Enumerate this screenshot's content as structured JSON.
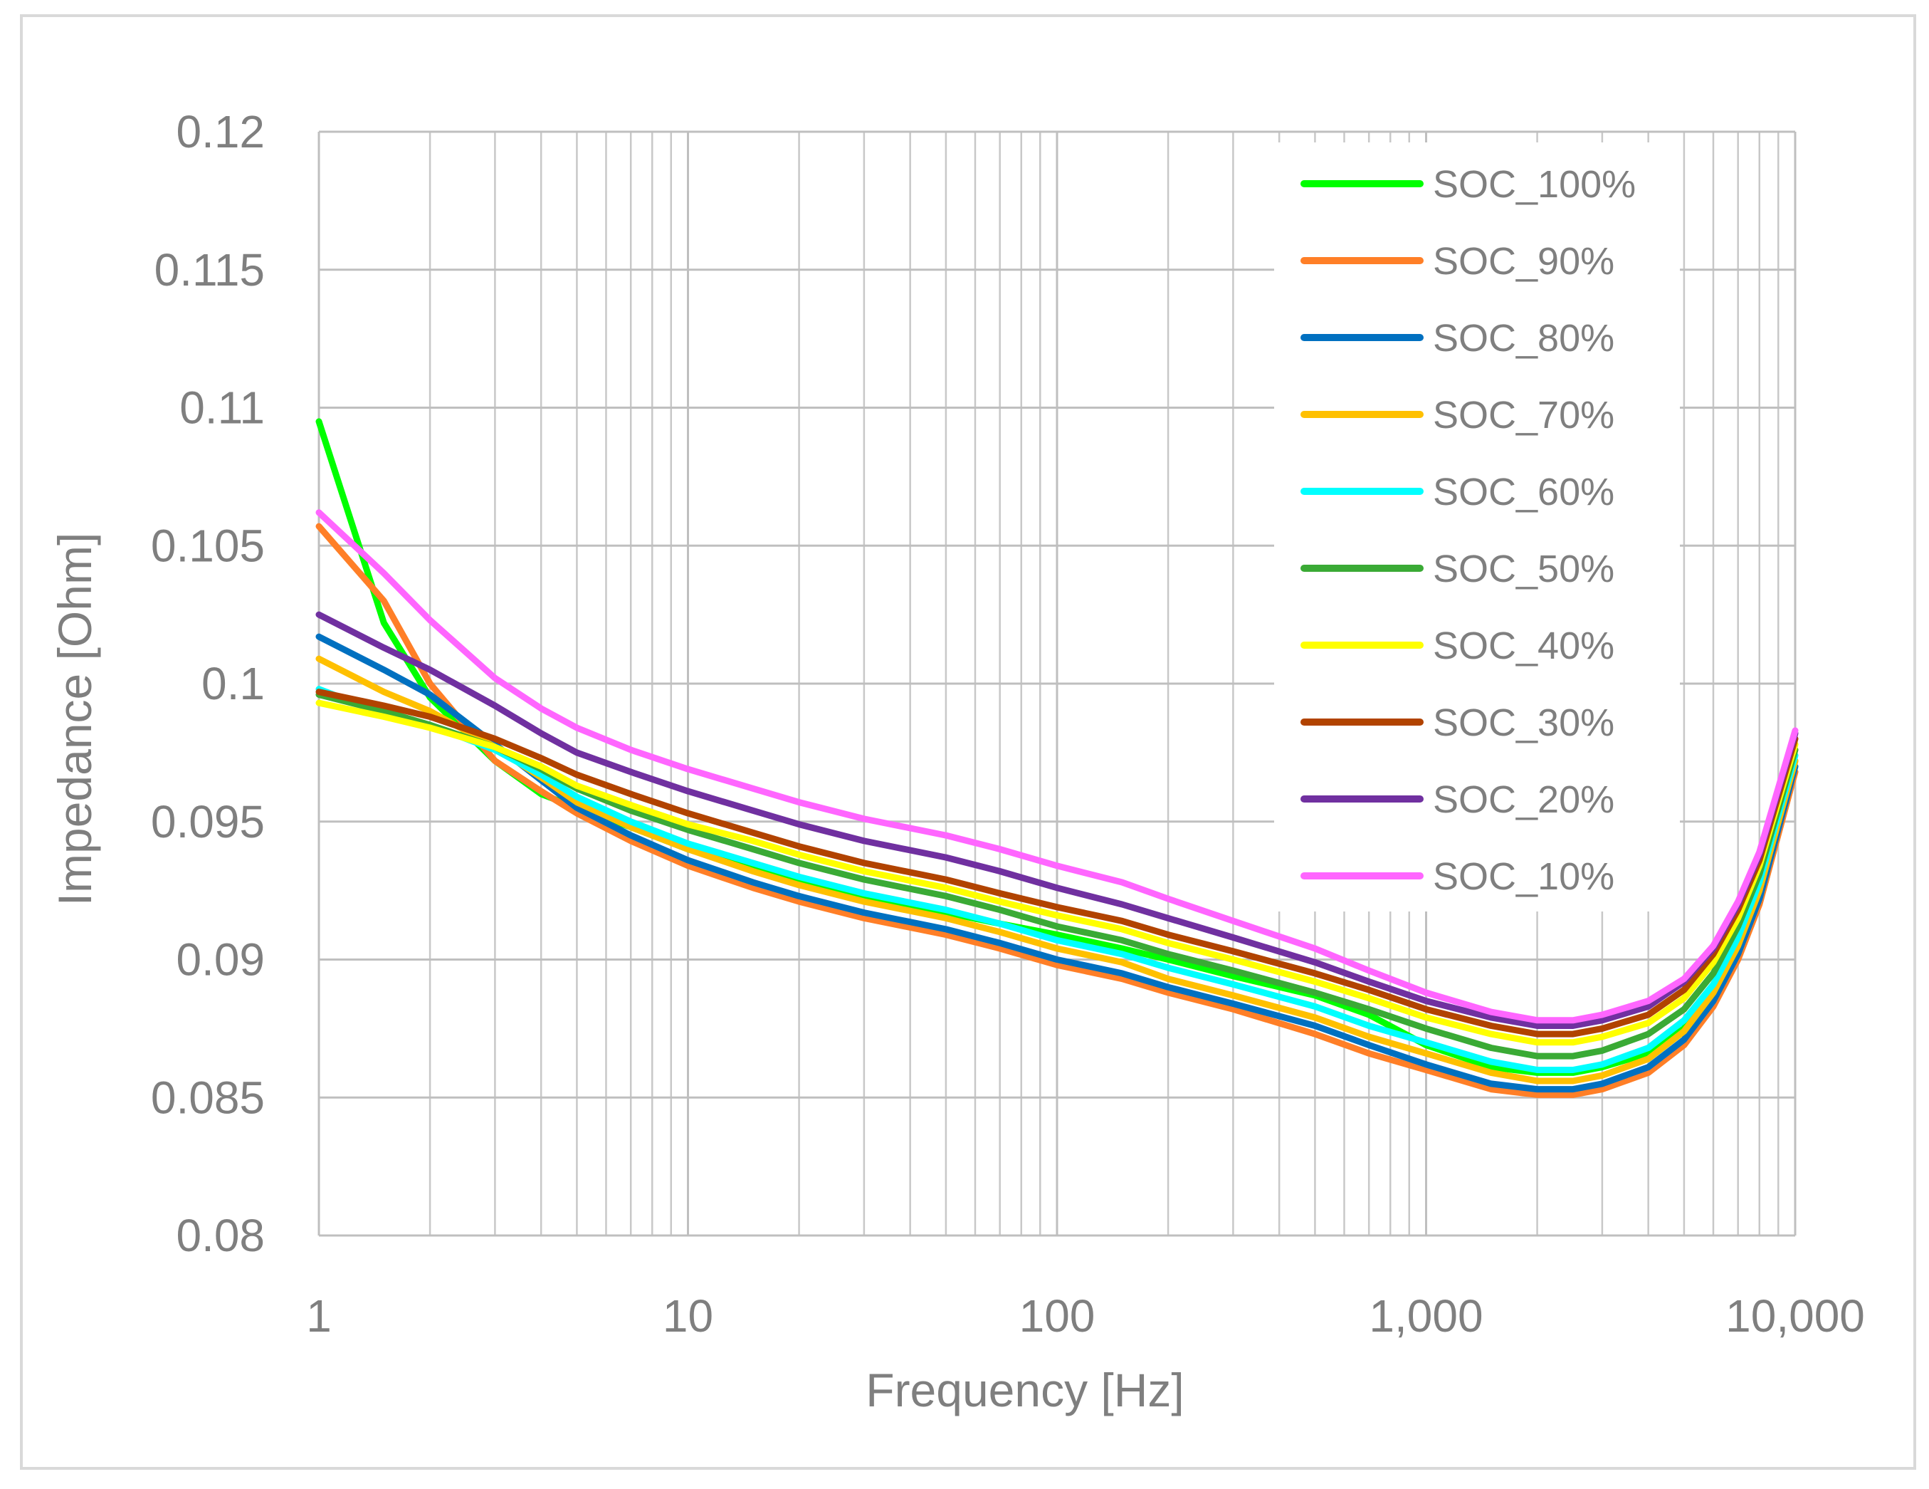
{
  "chart_data": {
    "type": "line",
    "title": "",
    "xlabel": "Frequency [Hz]",
    "ylabel": "Impedance [Ohm]",
    "xscale": "log",
    "xlim": [
      1,
      10000
    ],
    "ylim": [
      0.08,
      0.12
    ],
    "grid": true,
    "legend_position": "top-right",
    "x_ticks": [
      1,
      10,
      100,
      1000,
      10000
    ],
    "x_tick_labels": [
      "1",
      "10",
      "100",
      "1,000",
      "10,000"
    ],
    "y_ticks": [
      0.08,
      0.085,
      0.09,
      0.095,
      0.1,
      0.105,
      0.11,
      0.115,
      0.12
    ],
    "y_tick_labels": [
      "0.08",
      "0.085",
      "0.09",
      "0.095",
      "0.1",
      "0.105",
      "0.11",
      "0.115",
      "0.12"
    ],
    "x": [
      1,
      1.5,
      2,
      3,
      4,
      5,
      7,
      10,
      15,
      20,
      30,
      50,
      70,
      100,
      150,
      200,
      300,
      500,
      700,
      1000,
      1500,
      2000,
      2500,
      3000,
      4000,
      5000,
      6000,
      7000,
      8000,
      10000
    ],
    "series": [
      {
        "name": "SOC_100%",
        "color": "#00ff00",
        "values": [
          0.1095,
          0.1022,
          0.0995,
          0.0972,
          0.096,
          0.0955,
          0.0948,
          0.094,
          0.0933,
          0.0928,
          0.0922,
          0.0917,
          0.0913,
          0.0909,
          0.0904,
          0.09,
          0.0894,
          0.0887,
          0.088,
          0.0869,
          0.0861,
          0.0859,
          0.0859,
          0.0861,
          0.0866,
          0.0875,
          0.0889,
          0.0906,
          0.0926,
          0.0972
        ]
      },
      {
        "name": "SOC_90%",
        "color": "#ff7f27",
        "values": [
          0.1057,
          0.103,
          0.1,
          0.0972,
          0.0961,
          0.0953,
          0.0943,
          0.0934,
          0.0926,
          0.0921,
          0.0915,
          0.0909,
          0.0904,
          0.0898,
          0.0893,
          0.0888,
          0.0882,
          0.0873,
          0.0866,
          0.086,
          0.0853,
          0.0851,
          0.0851,
          0.0853,
          0.0859,
          0.0869,
          0.0883,
          0.09,
          0.092,
          0.0968
        ]
      },
      {
        "name": "SOC_80%",
        "color": "#0070c0",
        "values": [
          0.1017,
          0.1005,
          0.0996,
          0.0978,
          0.0965,
          0.0955,
          0.0945,
          0.0936,
          0.0928,
          0.0923,
          0.0917,
          0.0911,
          0.0906,
          0.09,
          0.0895,
          0.089,
          0.0884,
          0.0876,
          0.0869,
          0.0862,
          0.0855,
          0.0853,
          0.0853,
          0.0855,
          0.0861,
          0.0871,
          0.0885,
          0.0902,
          0.0922,
          0.097
        ]
      },
      {
        "name": "SOC_70%",
        "color": "#ffc000",
        "values": [
          0.1009,
          0.0997,
          0.099,
          0.0977,
          0.0966,
          0.0957,
          0.0948,
          0.094,
          0.0932,
          0.0927,
          0.0921,
          0.0915,
          0.091,
          0.0904,
          0.0899,
          0.0893,
          0.0887,
          0.0879,
          0.0872,
          0.0866,
          0.0859,
          0.0856,
          0.0856,
          0.0858,
          0.0864,
          0.0874,
          0.0888,
          0.0905,
          0.0925,
          0.0972
        ]
      },
      {
        "name": "SOC_60%",
        "color": "#00ffff",
        "values": [
          0.0998,
          0.0989,
          0.0985,
          0.0976,
          0.0967,
          0.0959,
          0.095,
          0.0942,
          0.0935,
          0.093,
          0.0924,
          0.0918,
          0.0913,
          0.0907,
          0.0902,
          0.0897,
          0.0891,
          0.0883,
          0.0876,
          0.087,
          0.0863,
          0.086,
          0.086,
          0.0862,
          0.0868,
          0.0878,
          0.0891,
          0.0908,
          0.0928,
          0.0974
        ]
      },
      {
        "name": "SOC_50%",
        "color": "#3aaa35",
        "values": [
          0.0996,
          0.099,
          0.0985,
          0.0977,
          0.0969,
          0.0962,
          0.0954,
          0.0947,
          0.094,
          0.0935,
          0.0929,
          0.0923,
          0.0918,
          0.0912,
          0.0907,
          0.0902,
          0.0896,
          0.0888,
          0.0882,
          0.0875,
          0.0868,
          0.0865,
          0.0865,
          0.0867,
          0.0873,
          0.0882,
          0.0895,
          0.0912,
          0.0931,
          0.0976
        ]
      },
      {
        "name": "SOC_40%",
        "color": "#ffff00",
        "values": [
          0.0993,
          0.0988,
          0.0984,
          0.0977,
          0.097,
          0.0963,
          0.0956,
          0.0949,
          0.0943,
          0.0938,
          0.0932,
          0.0926,
          0.0921,
          0.0916,
          0.0911,
          0.0906,
          0.09,
          0.0892,
          0.0886,
          0.0879,
          0.0873,
          0.087,
          0.087,
          0.0872,
          0.0877,
          0.0886,
          0.0899,
          0.0915,
          0.0934,
          0.0978
        ]
      },
      {
        "name": "SOC_30%",
        "color": "#b14300",
        "values": [
          0.0997,
          0.0992,
          0.0988,
          0.098,
          0.0973,
          0.0967,
          0.096,
          0.0953,
          0.0946,
          0.0941,
          0.0935,
          0.0929,
          0.0924,
          0.0919,
          0.0914,
          0.0909,
          0.0903,
          0.0895,
          0.0889,
          0.0882,
          0.0876,
          0.0873,
          0.0873,
          0.0875,
          0.088,
          0.0889,
          0.0902,
          0.0918,
          0.0936,
          0.098
        ]
      },
      {
        "name": "SOC_20%",
        "color": "#7030a0",
        "values": [
          0.1025,
          0.1013,
          0.1005,
          0.0992,
          0.0982,
          0.0975,
          0.0968,
          0.0961,
          0.0954,
          0.0949,
          0.0943,
          0.0937,
          0.0932,
          0.0926,
          0.092,
          0.0915,
          0.0908,
          0.0899,
          0.0892,
          0.0885,
          0.0879,
          0.0876,
          0.0876,
          0.0878,
          0.0883,
          0.0892,
          0.0904,
          0.092,
          0.0938,
          0.0982
        ]
      },
      {
        "name": "SOC_10%",
        "color": "#ff66ff",
        "values": [
          0.1062,
          0.104,
          0.1023,
          0.1002,
          0.0991,
          0.0984,
          0.0976,
          0.0969,
          0.0962,
          0.0957,
          0.0951,
          0.0945,
          0.094,
          0.0934,
          0.0928,
          0.0922,
          0.0914,
          0.0904,
          0.0896,
          0.0888,
          0.0881,
          0.0878,
          0.0878,
          0.088,
          0.0885,
          0.0893,
          0.0905,
          0.0921,
          0.0939,
          0.0983
        ]
      }
    ]
  }
}
